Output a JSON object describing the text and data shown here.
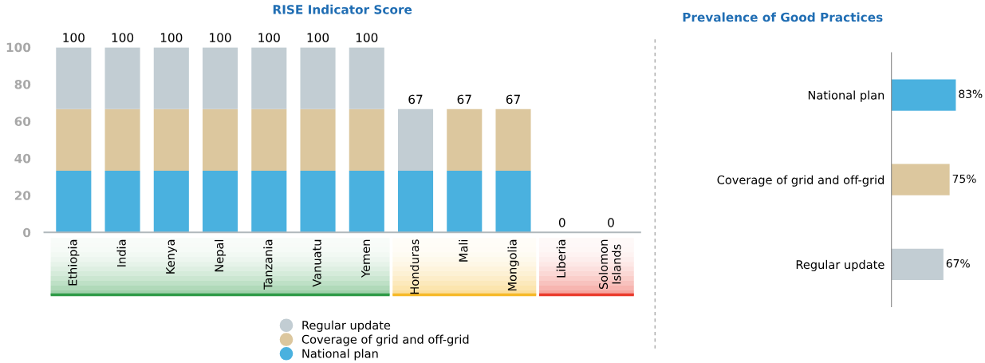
{
  "chart_data": [
    {
      "type": "bar",
      "title": "RISE Indicator Score",
      "stacked": true,
      "categories": [
        "Ethiopia",
        "India",
        "Kenya",
        "Nepal",
        "Tanzania",
        "Vanuatu",
        "Yemen",
        "Honduras",
        "Mali",
        "Mongolia",
        "Liberia",
        "Solomon Islands"
      ],
      "series": [
        {
          "name": "National plan",
          "color": "#4ab1df",
          "values": [
            33.3,
            33.3,
            33.3,
            33.3,
            33.3,
            33.3,
            33.3,
            33.3,
            33.3,
            33.3,
            0,
            0
          ]
        },
        {
          "name": "Coverage of grid and off-grid",
          "color": "#dcc79e",
          "values": [
            33.3,
            33.3,
            33.3,
            33.3,
            33.3,
            33.3,
            33.3,
            0,
            33.3,
            33.3,
            0,
            0
          ]
        },
        {
          "name": "Regular update",
          "color": "#c2cdd3",
          "values": [
            33.3,
            33.3,
            33.3,
            33.3,
            33.3,
            33.3,
            33.3,
            33.3,
            0,
            0,
            0,
            0
          ]
        }
      ],
      "totals": [
        "100",
        "100",
        "100",
        "100",
        "100",
        "100",
        "100",
        "67",
        "67",
        "67",
        "0",
        "0"
      ],
      "ylim": [
        0,
        100
      ],
      "yticks": [
        0,
        20,
        40,
        60,
        80,
        100
      ],
      "grid": false,
      "legend": "bottom",
      "marker": "circle"
    },
    {
      "type": "bar",
      "title": "Prevalence of Good Practices",
      "orientation": "horizontal",
      "categories": [
        "National plan",
        "Coverage of grid and off-grid",
        "Regular update"
      ],
      "values": [
        83,
        75,
        67
      ],
      "colors": [
        "#4ab1df",
        "#dcc79e",
        "#c2cdd3"
      ],
      "value_labels": [
        "83%",
        "75%",
        "67%"
      ],
      "tick_labels": "y",
      "grid": false,
      "legend": false
    }
  ]
}
